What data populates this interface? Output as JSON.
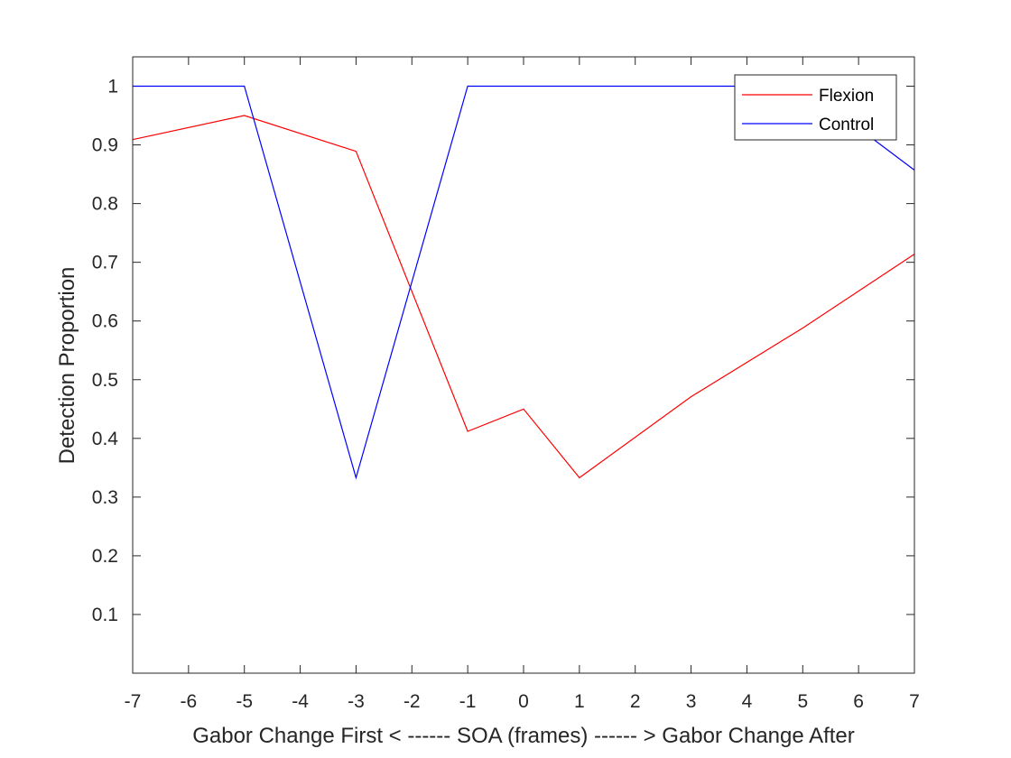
{
  "chart_data": {
    "type": "line",
    "xlabel": "Gabor Change First < ------ SOA (frames) ------ > Gabor Change After",
    "ylabel": "Detection Proportion",
    "xlim": [
      -7,
      7
    ],
    "ylim": [
      0,
      1.05
    ],
    "xticks": [
      -7,
      -6,
      -5,
      -4,
      -3,
      -2,
      -1,
      0,
      1,
      2,
      3,
      4,
      5,
      6,
      7
    ],
    "yticks": [
      0.1,
      0.2,
      0.3,
      0.4,
      0.5,
      0.6,
      0.7,
      0.8,
      0.9,
      1
    ],
    "ytick_labels": [
      "0.1",
      "0.2",
      "0.3",
      "0.4",
      "0.5",
      "0.6",
      "0.7",
      "0.8",
      "0.9",
      "1"
    ],
    "grid": false,
    "legend_position": "top-right",
    "series": [
      {
        "name": "Flexion",
        "color": "#ff0000",
        "x": [
          -7,
          -5,
          -3,
          -1,
          0,
          1,
          3,
          5,
          7
        ],
        "y": [
          0.909,
          0.95,
          0.889,
          0.412,
          0.45,
          0.333,
          0.471,
          0.588,
          0.714
        ]
      },
      {
        "name": "Control",
        "color": "#0000ff",
        "x": [
          -7,
          -5,
          -3,
          -1,
          1,
          3,
          5,
          7
        ],
        "y": [
          1,
          1,
          0.333,
          1,
          1,
          1,
          1,
          0.857
        ]
      }
    ]
  }
}
